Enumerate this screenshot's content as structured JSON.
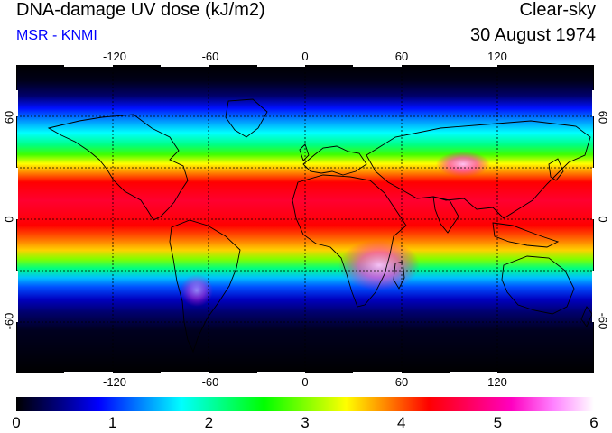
{
  "header": {
    "title": "DNA-damage UV dose (kJ/m2)",
    "subtitle": "MSR - KNMI",
    "mode": "Clear-sky",
    "date": "30 August 1974"
  },
  "map": {
    "lon_ticks": [
      "-120",
      "-60",
      "0",
      "60",
      "120"
    ],
    "lat_ticks": [
      "60",
      "0",
      "-60"
    ],
    "lon_values": [
      -120,
      -60,
      0,
      60,
      120
    ],
    "lat_values": [
      60,
      30,
      0,
      -30,
      -60
    ],
    "lon_range": [
      -180,
      180
    ],
    "lat_range": [
      -90,
      90
    ]
  },
  "colorbar": {
    "ticks": [
      "0",
      "1",
      "2",
      "3",
      "4",
      "5",
      "6"
    ],
    "range": [
      0,
      6
    ],
    "colors": [
      "#000000",
      "#00007a",
      "#0000ff",
      "#0080ff",
      "#00ffff",
      "#00ff80",
      "#00ff00",
      "#80ff00",
      "#ffff00",
      "#ff8000",
      "#ff0000",
      "#ff0060",
      "#ff00c0",
      "#ff80ff",
      "#ffffff"
    ]
  }
}
